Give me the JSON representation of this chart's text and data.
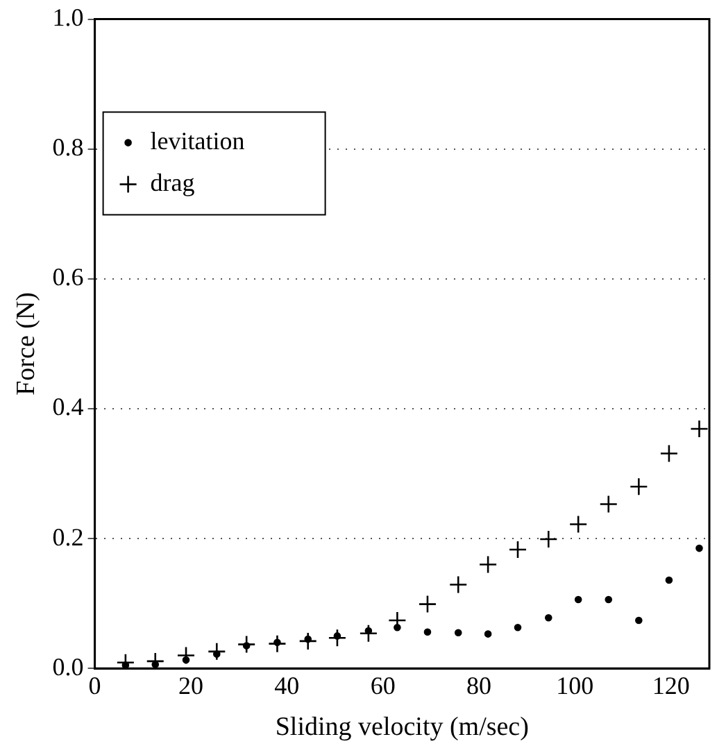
{
  "chart_data": {
    "type": "scatter",
    "xlabel": "Sliding velocity (m/sec)",
    "ylabel": "Force (N)",
    "xlim": [
      0,
      128
    ],
    "xticks": [
      0,
      20,
      40,
      60,
      80,
      100,
      120
    ],
    "ylim": [
      0,
      1
    ],
    "yticks": [
      {
        "value": 0,
        "label": "0.0"
      },
      0.2,
      0.4,
      0.6,
      0.8,
      {
        "value": 1,
        "label": "1.0"
      }
    ],
    "grid": "y",
    "legend": "top left",
    "x": [
      6.4,
      12.6,
      19,
      25.4,
      31.6,
      38,
      44.4,
      50.5,
      57,
      63,
      69.3,
      75.7,
      81.9,
      88.1,
      94.5,
      100.7,
      107,
      113.3,
      119.6,
      125.9
    ],
    "series": [
      {
        "name": "levitation",
        "color": "#000000",
        "marker": "circle",
        "values": [
          0.005,
          0.006,
          0.013,
          0.022,
          0.035,
          0.04,
          0.045,
          0.05,
          0.058,
          0.063,
          0.056,
          0.055,
          0.053,
          0.063,
          0.078,
          0.106,
          0.106,
          0.074,
          0.136,
          0.185
        ]
      },
      {
        "name": "drag",
        "color": "#000000",
        "marker": "cross",
        "values": [
          0.009,
          0.011,
          0.02,
          0.026,
          0.037,
          0.038,
          0.042,
          0.047,
          0.054,
          0.074,
          0.099,
          0.129,
          0.16,
          0.183,
          0.199,
          0.222,
          0.253,
          0.28,
          0.331,
          0.369
        ]
      }
    ]
  }
}
